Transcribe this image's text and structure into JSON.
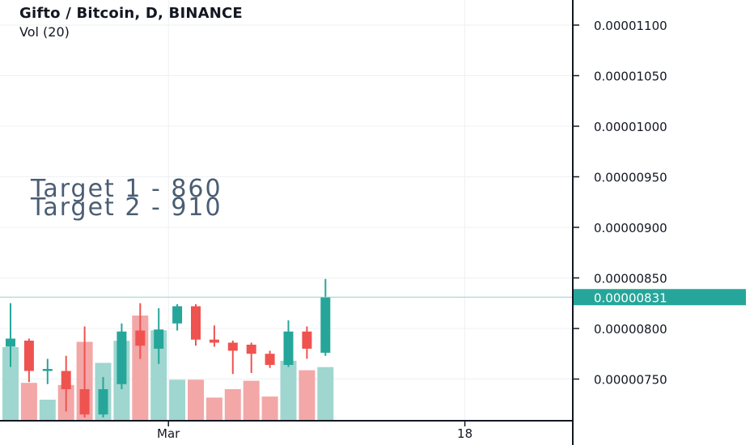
{
  "header": {
    "title": "Gifto / Bitcoin, D, BINANCE",
    "indicator": "Vol (20)"
  },
  "annotations": [
    "Target 1 - 860",
    "Target 2 - 910"
  ],
  "colors": {
    "up": "#26a69a",
    "down": "#ef5350",
    "vol_up": "#9fd6cf",
    "vol_down": "#f3a7a7",
    "axis": "#131722",
    "grid": "#eef0f3",
    "last_price_bg": "#26a69a",
    "last_price_line": "#8fd3cc"
  },
  "chart_data": {
    "type": "candlestick",
    "symbol": "Gifto / Bitcoin",
    "interval": "D",
    "exchange": "BINANCE",
    "y_axis": {
      "ticks": [
        7.5e-06,
        8e-06,
        8.5e-06,
        9e-06,
        9.5e-06,
        1e-05,
        1.05e-05,
        1.1e-05
      ],
      "tick_labels": [
        "0.00000750",
        "0.00000800",
        "0.00000850",
        "0.00000900",
        "0.00000950",
        "0.00001000",
        "0.00001050",
        "0.00001100"
      ],
      "last_price": 8.31e-06,
      "last_price_label": "0.00000831",
      "grid": true
    },
    "x_axis": {
      "tick_labels": [
        "Mar",
        "18"
      ],
      "tick_index": [
        8,
        24
      ]
    },
    "candles": [
      {
        "o": 7.82e-06,
        "h": 8.25e-06,
        "l": 7.62e-06,
        "c": 7.9e-06
      },
      {
        "o": 7.88e-06,
        "h": 7.9e-06,
        "l": 7.47e-06,
        "c": 7.58e-06
      },
      {
        "o": 7.58e-06,
        "h": 7.7e-06,
        "l": 7.45e-06,
        "c": 7.6e-06
      },
      {
        "o": 7.58e-06,
        "h": 7.73e-06,
        "l": 7.18e-06,
        "c": 7.4e-06
      },
      {
        "o": 7.4e-06,
        "h": 8.02e-06,
        "l": 7.12e-06,
        "c": 7.15e-06
      },
      {
        "o": 7.15e-06,
        "h": 7.52e-06,
        "l": 7.12e-06,
        "c": 7.4e-06
      },
      {
        "o": 7.45e-06,
        "h": 8.05e-06,
        "l": 7.4e-06,
        "c": 7.97e-06
      },
      {
        "o": 7.98e-06,
        "h": 8.25e-06,
        "l": 7.7e-06,
        "c": 7.83e-06
      },
      {
        "o": 7.8e-06,
        "h": 8.2e-06,
        "l": 7.65e-06,
        "c": 7.99e-06
      },
      {
        "o": 8.05e-06,
        "h": 8.24e-06,
        "l": 7.98e-06,
        "c": 8.22e-06
      },
      {
        "o": 8.22e-06,
        "h": 8.24e-06,
        "l": 7.83e-06,
        "c": 7.89e-06
      },
      {
        "o": 7.89e-06,
        "h": 8.03e-06,
        "l": 7.82e-06,
        "c": 7.86e-06
      },
      {
        "o": 7.86e-06,
        "h": 7.88e-06,
        "l": 7.55e-06,
        "c": 7.78e-06
      },
      {
        "o": 7.84e-06,
        "h": 7.86e-06,
        "l": 7.56e-06,
        "c": 7.75e-06
      },
      {
        "o": 7.75e-06,
        "h": 7.78e-06,
        "l": 7.61e-06,
        "c": 7.64e-06
      },
      {
        "o": 7.64e-06,
        "h": 8.08e-06,
        "l": 7.62e-06,
        "c": 7.97e-06
      },
      {
        "o": 7.97e-06,
        "h": 8.02e-06,
        "l": 7.7e-06,
        "c": 7.8e-06
      },
      {
        "o": 7.76e-06,
        "h": 8.49e-06,
        "l": 7.73e-06,
        "c": 8.31e-06
      }
    ],
    "volume": [
      0.7,
      0.36,
      0.2,
      0.34,
      0.75,
      0.55,
      0.76,
      1.0,
      0.86,
      0.39,
      0.39,
      0.22,
      0.3,
      0.38,
      0.23,
      0.57,
      0.48,
      0.51
    ]
  }
}
